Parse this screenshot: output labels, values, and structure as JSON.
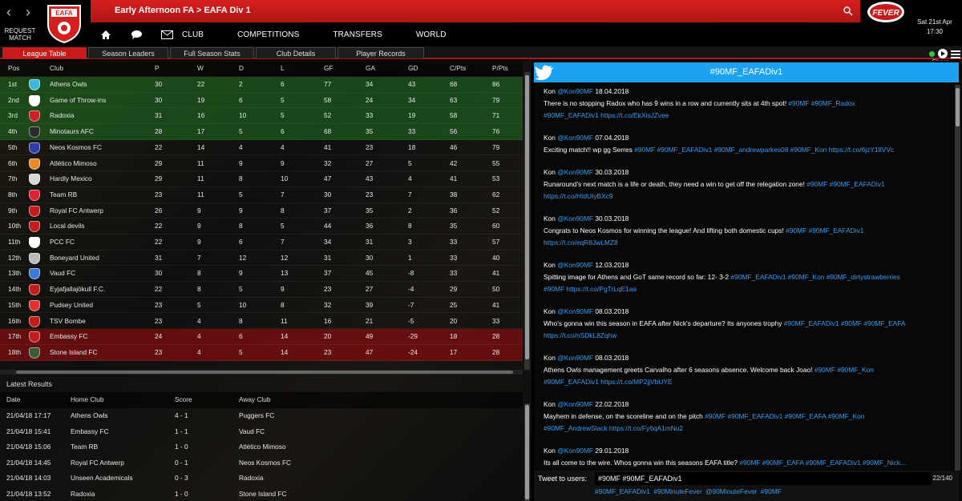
{
  "header": {
    "request_match": "REQUEST MATCH",
    "crest_text": "EAFA",
    "breadcrumb": "Early Afternoon FA > EAFA Div 1",
    "fever_logo": "FEVER",
    "date": "Sat 21st Apr",
    "time": "17:30"
  },
  "nav": {
    "icons": [
      "home-icon",
      "chat-icon",
      "mail-icon"
    ],
    "items": [
      "CLUB",
      "COMPETITIONS",
      "TRANSFERS",
      "WORLD"
    ]
  },
  "tabs": [
    "League Table",
    "Season Leaders",
    "Full Season Stats",
    "Club Details",
    "Player Records"
  ],
  "share_label": "Share",
  "league_table": {
    "columns": [
      "Pos",
      "Club",
      "P",
      "W",
      "D",
      "L",
      "GF",
      "GA",
      "GD",
      "C/Pts",
      "P/Pts"
    ],
    "rows": [
      {
        "pos": "1st",
        "club": "Athens Owls",
        "p": "30",
        "w": "22",
        "d": "2",
        "l": "6",
        "gf": "77",
        "ga": "34",
        "gd": "43",
        "cp": "68",
        "pp": "86",
        "zone": "promo",
        "badge": "#3fb6d8"
      },
      {
        "pos": "2nd",
        "club": "Game of Throw-ins",
        "p": "30",
        "w": "19",
        "d": "6",
        "l": "5",
        "gf": "58",
        "ga": "24",
        "gd": "34",
        "cp": "63",
        "pp": "79",
        "zone": "promo",
        "badge": "#ffffff"
      },
      {
        "pos": "3rd",
        "club": "Radoxia",
        "p": "31",
        "w": "16",
        "d": "10",
        "l": "5",
        "gf": "52",
        "ga": "33",
        "gd": "19",
        "cp": "58",
        "pp": "71",
        "zone": "promo",
        "badge": "#cc2222"
      },
      {
        "pos": "4th",
        "club": "Minotaurs AFC",
        "p": "28",
        "w": "17",
        "d": "5",
        "l": "6",
        "gf": "68",
        "ga": "35",
        "gd": "33",
        "cp": "56",
        "pp": "76",
        "zone": "promo",
        "badge": "#2b2b2b"
      },
      {
        "pos": "5th",
        "club": "Neos Kosmos FC",
        "p": "22",
        "w": "14",
        "d": "4",
        "l": "4",
        "gf": "41",
        "ga": "23",
        "gd": "18",
        "cp": "46",
        "pp": "79",
        "zone": "",
        "badge": "#2a3fa8"
      },
      {
        "pos": "6th",
        "club": "Atlético Mimoso",
        "p": "29",
        "w": "11",
        "d": "9",
        "l": "9",
        "gf": "32",
        "ga": "27",
        "gd": "5",
        "cp": "42",
        "pp": "55",
        "zone": "",
        "badge": "#e88a2a"
      },
      {
        "pos": "7th",
        "club": "Hardly Mexico",
        "p": "29",
        "w": "11",
        "d": "8",
        "l": "10",
        "gf": "47",
        "ga": "43",
        "gd": "4",
        "cp": "41",
        "pp": "53",
        "zone": "",
        "badge": "#d8d8d8"
      },
      {
        "pos": "8th",
        "club": "Team RB",
        "p": "23",
        "w": "11",
        "d": "5",
        "l": "7",
        "gf": "30",
        "ga": "23",
        "gd": "7",
        "cp": "38",
        "pp": "62",
        "zone": "",
        "badge": "#dd2233"
      },
      {
        "pos": "9th",
        "club": "Royal FC Antwerp",
        "p": "26",
        "w": "9",
        "d": "9",
        "l": "8",
        "gf": "37",
        "ga": "35",
        "gd": "2",
        "cp": "36",
        "pp": "52",
        "zone": "",
        "badge": "#c21c1c"
      },
      {
        "pos": "10th",
        "club": "Local devils",
        "p": "22",
        "w": "9",
        "d": "8",
        "l": "5",
        "gf": "44",
        "ga": "36",
        "gd": "8",
        "cp": "35",
        "pp": "60",
        "zone": "",
        "badge": "#c21c1c"
      },
      {
        "pos": "11th",
        "club": "PCC FC",
        "p": "22",
        "w": "9",
        "d": "6",
        "l": "7",
        "gf": "34",
        "ga": "31",
        "gd": "3",
        "cp": "33",
        "pp": "57",
        "zone": "",
        "badge": "#ffffff"
      },
      {
        "pos": "12th",
        "club": "Boneyard United",
        "p": "31",
        "w": "7",
        "d": "12",
        "l": "12",
        "gf": "31",
        "ga": "30",
        "gd": "1",
        "cp": "33",
        "pp": "40",
        "zone": "",
        "badge": "#bbbbbb"
      },
      {
        "pos": "13th",
        "club": "Vaud FC",
        "p": "30",
        "w": "8",
        "d": "9",
        "l": "13",
        "gf": "37",
        "ga": "45",
        "gd": "-8",
        "cp": "33",
        "pp": "41",
        "zone": "",
        "badge": "#3a7bd5"
      },
      {
        "pos": "14th",
        "club": "Eyjafjallajökull F.C.",
        "p": "22",
        "w": "8",
        "d": "5",
        "l": "9",
        "gf": "23",
        "ga": "27",
        "gd": "-4",
        "cp": "29",
        "pp": "50",
        "zone": "",
        "badge": "#c21c1c"
      },
      {
        "pos": "15th",
        "club": "Pudsey United",
        "p": "23",
        "w": "5",
        "d": "10",
        "l": "8",
        "gf": "32",
        "ga": "39",
        "gd": "-7",
        "cp": "25",
        "pp": "41",
        "zone": "",
        "badge": "#dd3333"
      },
      {
        "pos": "16th",
        "club": "TSV Bombe",
        "p": "23",
        "w": "4",
        "d": "8",
        "l": "11",
        "gf": "16",
        "ga": "21",
        "gd": "-5",
        "cp": "20",
        "pp": "33",
        "zone": "",
        "badge": "#c21c1c"
      },
      {
        "pos": "17th",
        "club": "Embassy FC",
        "p": "24",
        "w": "4",
        "d": "6",
        "l": "14",
        "gf": "20",
        "ga": "49",
        "gd": "-29",
        "cp": "18",
        "pp": "28",
        "zone": "releg",
        "badge": "#c21c1c"
      },
      {
        "pos": "18th",
        "club": "Stone Island FC",
        "p": "23",
        "w": "4",
        "d": "5",
        "l": "14",
        "gf": "23",
        "ga": "47",
        "gd": "-24",
        "cp": "17",
        "pp": "28",
        "zone": "releg",
        "badge": "#3a5a3a"
      }
    ]
  },
  "latest_results": {
    "title": "Latest Results",
    "columns": [
      "Date",
      "Home Club",
      "Score",
      "Away Club"
    ],
    "rows": [
      {
        "date": "21/04/18 17:17",
        "home": "Athens Owls",
        "score": "4 - 1",
        "away": "Puggers FC"
      },
      {
        "date": "21/04/18 15:41",
        "home": "Embassy FC",
        "score": "1 - 1",
        "away": "Vaud FC"
      },
      {
        "date": "21/04/18 15:06",
        "home": "Team RB",
        "score": "1 - 0",
        "away": "Atlético Mimoso"
      },
      {
        "date": "21/04/18 14:45",
        "home": "Royal FC Antwerp",
        "score": "0 - 1",
        "away": "Neos Kosmos FC"
      },
      {
        "date": "21/04/18 14:03",
        "home": "Unseen Academicals",
        "score": "0 - 3",
        "away": "Radoxia"
      },
      {
        "date": "21/04/18 13:52",
        "home": "Radoxia",
        "score": "1 - 0",
        "away": "Stone Island FC"
      }
    ]
  },
  "twitter": {
    "title": "#90MF_EAFADiv1",
    "tweets": [
      {
        "author": "Kon",
        "handle": "@Kon90MF",
        "date": "18.04.2018",
        "text": "There is no stopping Radox who has 9 wins in a row and currently sits at 4th spot!",
        "tags": "#90MF #90MF_Radox",
        "line2": "#90MF_EAFADiv1  https://t.co/EkXisJZvee"
      },
      {
        "author": "Kon",
        "handle": "@Kon90MF",
        "date": "07.04.2018",
        "text": "Exciting match!!  wp gg Serres",
        "tags": "#90MF #90MF_EAFADiv1 #90MF_andrewparkes08 #90MF_Kon  https://t.co/6jzY1IlVVc",
        "line2": ""
      },
      {
        "author": "Kon",
        "handle": "@Kon90MF",
        "date": "30.03.2018",
        "text": "Runaround's next match is a life or death, they need a win to get off the relegation zone!",
        "tags": "#90MF  #90MF_EAFADiv1",
        "line2": "https://t.co/HIdUIyBXc9"
      },
      {
        "author": "Kon",
        "handle": "@Kon90MF",
        "date": "30.03.2018",
        "text": "Congrats to Neos Kosmos for winning the league! And lifting both domestic cups!",
        "tags": "#90MF  #90MF_EAFADiv1",
        "line2": "https://t.co/eqR8JwLMZ8"
      },
      {
        "author": "Kon",
        "handle": "@Kon90MF",
        "date": "12.03.2018",
        "text": "Spitting image for Athens and GoT same record so far: 12- 3-2",
        "tags": "#90MF_EAFADiv1 #90MF_Kon #90MF_dirtystrawberries",
        "line2": "#90MF  https://t.co/PgTrLqE1aa"
      },
      {
        "author": "Kon",
        "handle": "@Kon90MF",
        "date": "08.03.2018",
        "text": "Who's gonna win this season in EAFA after Nick's departure?  Its anyones trophy",
        "tags": "#90MF_EAFADiv1 #90MF #90MF_EAFA",
        "line2": "https://t.co/nSDkL8Zqhw"
      },
      {
        "author": "Kon",
        "handle": "@Kon90MF",
        "date": "08.03.2018",
        "text": "Athens Owls management greets Carvalho after 6 seasons absence. Welcome back Joao!",
        "tags": "#90MF #90MF_Kon",
        "line2": "#90MF_EAFADiv1  https://t.co/MP2jjVbUYE"
      },
      {
        "author": "Kon",
        "handle": "@Kon90MF",
        "date": "22.02.2018",
        "text": "Mayhem in defense, on the scoreline and on the pitch",
        "tags": "#90MF #90MF_EAFADiv1 #90MF_EAFA #90MF_Kon",
        "line2": "#90MF_AndrewSlack  https://t.co/Fy6qA1mNu2"
      },
      {
        "author": "Kon",
        "handle": "@Kon90MF",
        "date": "29.01.2018",
        "text": "Its all come to the wire. Whos gonna win this seasons EAFA title?",
        "tags": "#90MF #90MF_EAFA #90MF_EAFADiv1 #90MF_Nick...",
        "line2": ""
      }
    ],
    "tweet_to_label": "Tweet to users:",
    "input_value": "#90MF #90MF_EAFADiv1",
    "char_count": "22/140",
    "suggested_tags": "#90MF_EAFADiv1  #90MinuteFever  @90MinuteFever  #90MF"
  }
}
